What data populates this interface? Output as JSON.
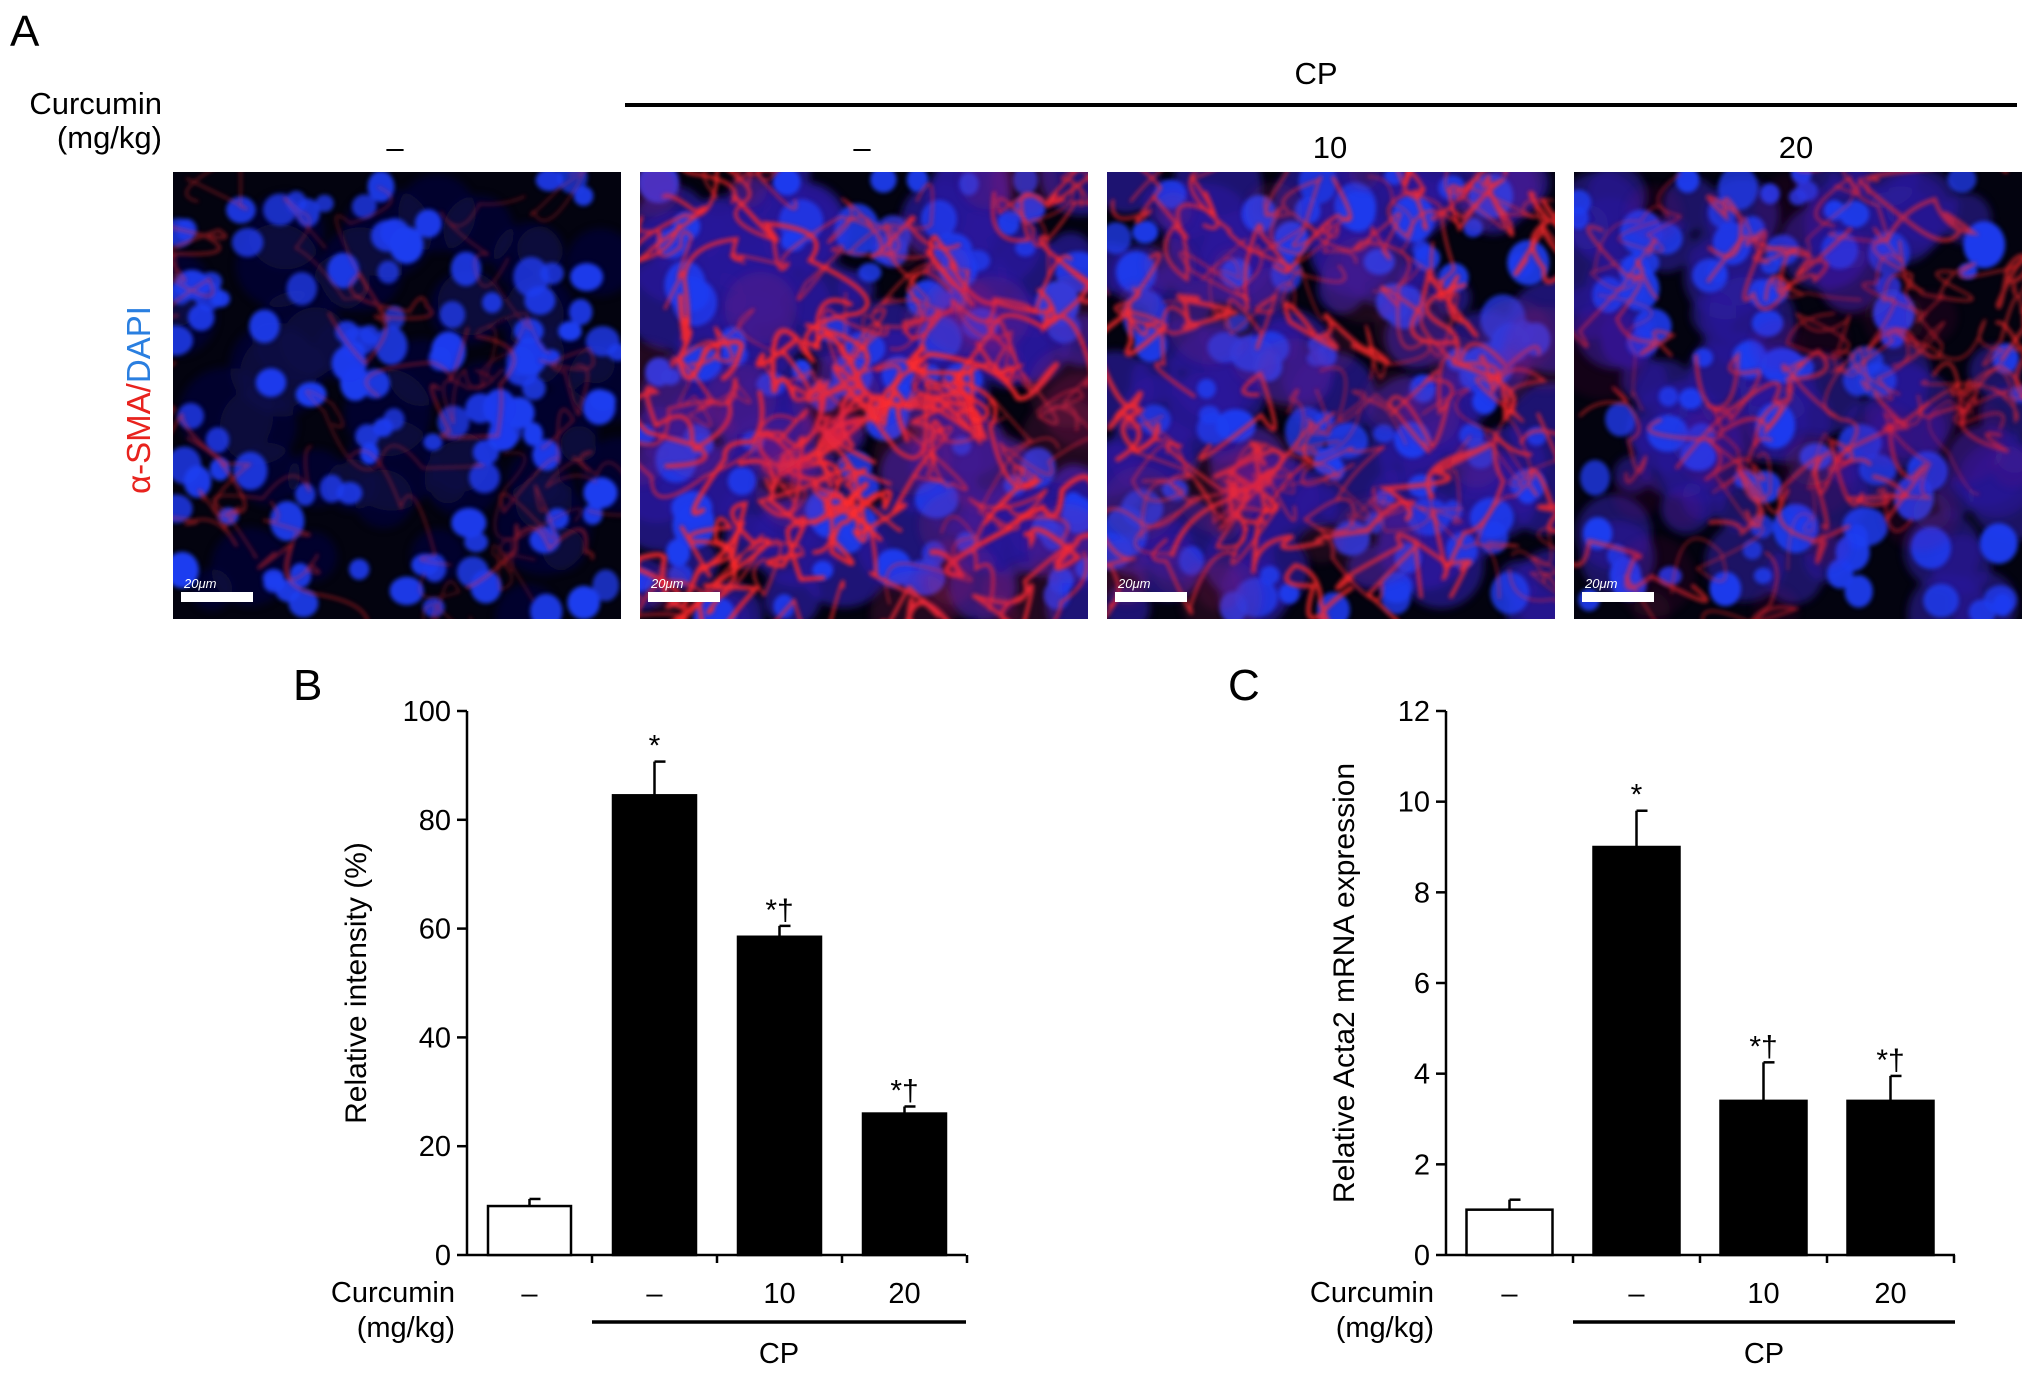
{
  "panel_a": {
    "letter": "A",
    "treatment_label": "CP",
    "dose_label_line1": "Curcumin",
    "dose_label_line2": "(mg/kg)",
    "stain_label_red": "α-SMA",
    "stain_label_sep": "/",
    "stain_label_blue": "DAPI",
    "stain_colors": {
      "alpha_sma": "#ff2020",
      "dapi": "#1a4bff"
    },
    "images": [
      {
        "dose": "–",
        "scale": "20μm",
        "red_level": 0.2
      },
      {
        "dose": "–",
        "scale": "20μm",
        "red_level": 1.0
      },
      {
        "dose": "10",
        "scale": "20μm",
        "red_level": 0.85
      },
      {
        "dose": "20",
        "scale": "20μm",
        "red_level": 0.55
      }
    ]
  },
  "chart_data": [
    {
      "panel": "B",
      "type": "bar",
      "categories": [
        "–",
        "–",
        "10",
        "20"
      ],
      "values": [
        9,
        84.5,
        58.5,
        26
      ],
      "errors": [
        1.3,
        6.2,
        2.0,
        1.3
      ],
      "significance": [
        "",
        "*",
        "*†",
        "*†"
      ],
      "bar_colors": [
        "#ffffff",
        "#000000",
        "#000000",
        "#000000"
      ],
      "ylabel": "Relative intensity (%)",
      "ylim": [
        0,
        100
      ],
      "yticks": [
        0,
        20,
        40,
        60,
        80,
        100
      ],
      "x_group_label_line1": "Curcumin",
      "x_group_label_line2": "(mg/kg)",
      "treatment_label": "CP"
    },
    {
      "panel": "C",
      "type": "bar",
      "categories": [
        "–",
        "–",
        "10",
        "20"
      ],
      "values": [
        1.0,
        9.0,
        3.4,
        3.4
      ],
      "errors": [
        0.22,
        0.8,
        0.85,
        0.55
      ],
      "significance": [
        "",
        "*",
        "*†",
        "*†"
      ],
      "bar_colors": [
        "#ffffff",
        "#000000",
        "#000000",
        "#000000"
      ],
      "ylabel": "Relative Acta2 mRNA expression",
      "ylim": [
        0,
        12
      ],
      "yticks": [
        0,
        2,
        4,
        6,
        8,
        10,
        12
      ],
      "x_group_label_line1": "Curcumin",
      "x_group_label_line2": "(mg/kg)",
      "treatment_label": "CP"
    }
  ]
}
